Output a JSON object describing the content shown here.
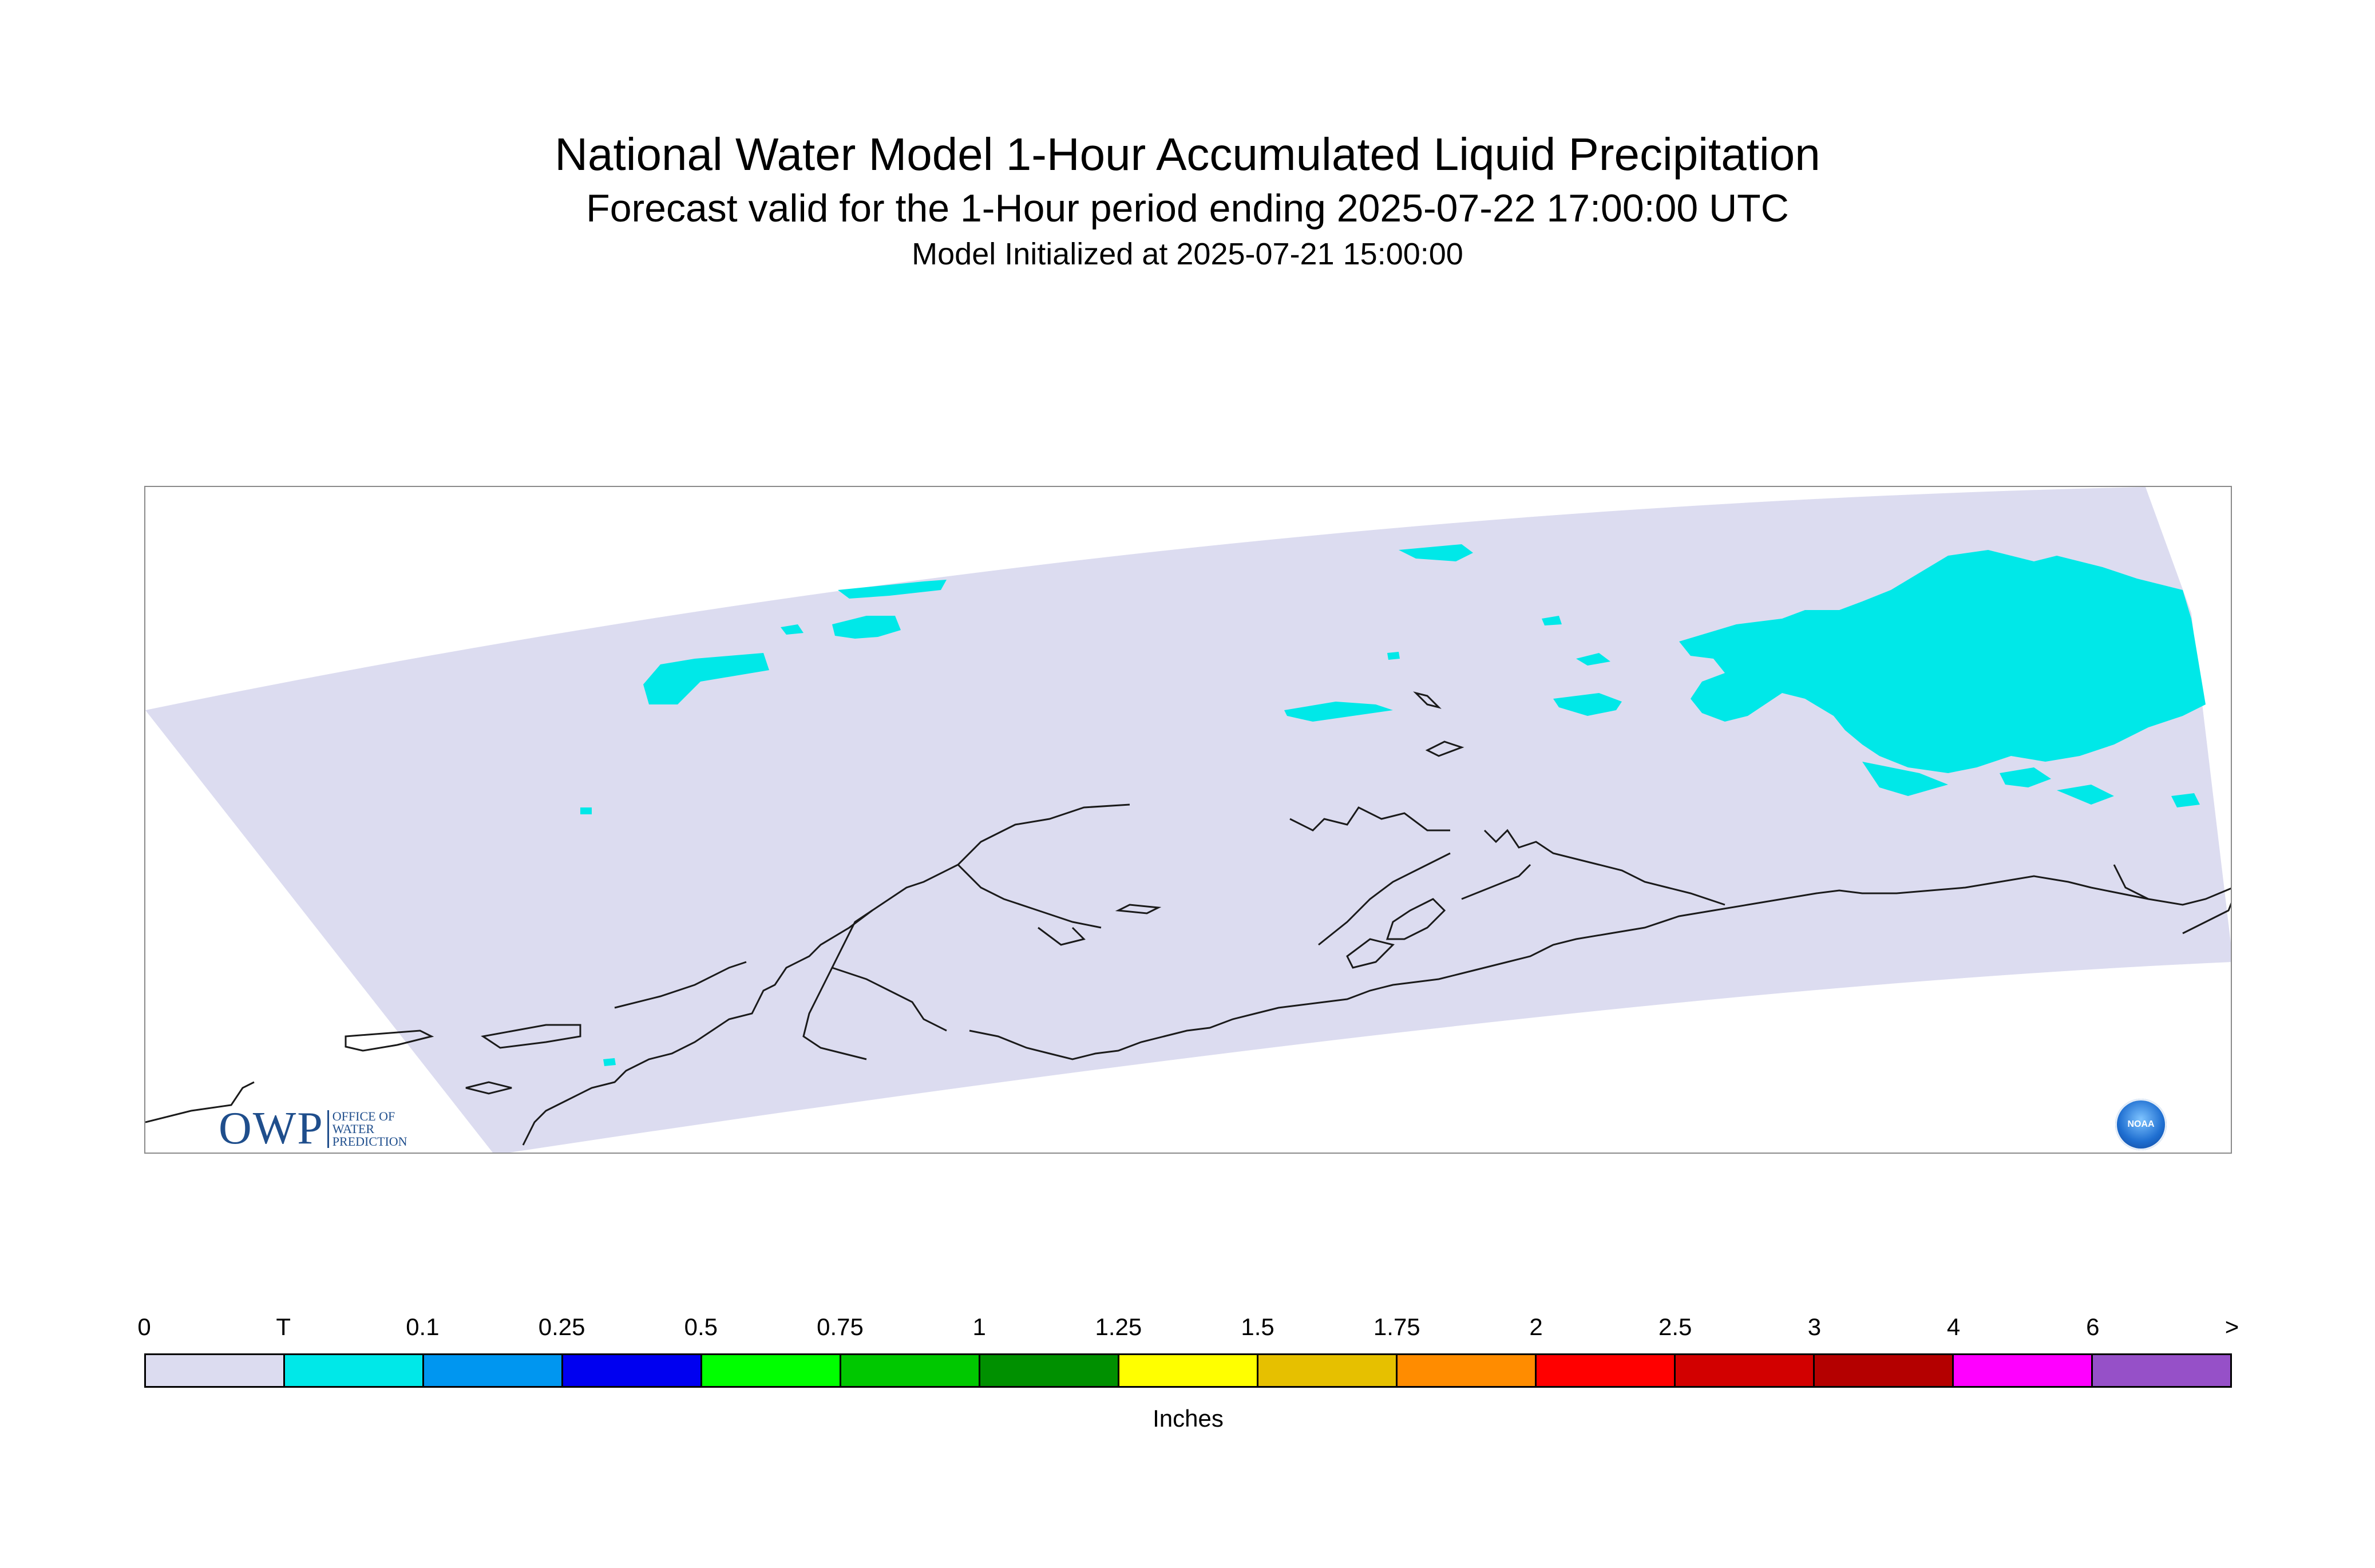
{
  "title": "National Water Model 1-Hour Accumulated Liquid Precipitation",
  "subtitle": "Forecast valid for the 1-Hour period ending 2025-07-22 17:00:00 UTC",
  "init_line": "Model Initialized at 2025-07-21 15:00:00",
  "logos": {
    "owp_mark": "OWP",
    "owp_text": [
      "OFFICE OF",
      "WATER",
      "PREDICTION"
    ],
    "noaa": "NOAA"
  },
  "legend": {
    "labels": [
      "0",
      "T",
      "0.1",
      "0.25",
      "0.5",
      "0.75",
      "1",
      "1.25",
      "1.5",
      "1.75",
      "2",
      "2.5",
      "3",
      "4",
      "6",
      ">"
    ],
    "colors": [
      "#dcdcf0",
      "#00e8e8",
      "#0096f0",
      "#0000f0",
      "#00ff00",
      "#00c800",
      "#009000",
      "#ffff00",
      "#e6c000",
      "#ff8c00",
      "#ff0000",
      "#d20000",
      "#b40000",
      "#ff00ff",
      "#9650c8"
    ],
    "unit": "Inches"
  },
  "map": {
    "background_color": "#dcdcf0",
    "precip_color": "#00e8e8",
    "coastline_color": "#1a1a1a"
  }
}
